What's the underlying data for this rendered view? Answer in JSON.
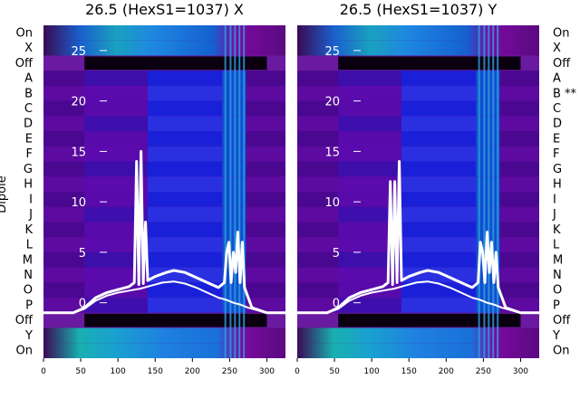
{
  "chart_data": [
    {
      "type": "heatmap",
      "title": "26.5 (HexS1=1037) X",
      "x_ticks": [
        0,
        50,
        100,
        150,
        200,
        250,
        300
      ],
      "xlim": [
        0,
        325
      ],
      "inner_y_ticks": [
        0,
        5,
        10,
        15,
        20,
        25
      ],
      "inner_ylim": [
        -5.5,
        27.5
      ],
      "ylabel": "Dipole",
      "row_labels": [
        "On",
        "X",
        "Off",
        "A",
        "B",
        "C",
        "D",
        "E",
        "F",
        "G",
        "H",
        "I",
        "J",
        "K",
        "L",
        "M",
        "N",
        "O",
        "P",
        "Off",
        "Y",
        "On"
      ],
      "traces": [
        {
          "x": [
            0,
            20,
            40,
            55,
            70,
            85,
            100,
            115,
            122,
            125,
            128,
            131,
            134,
            137,
            140,
            150,
            165,
            175,
            190,
            205,
            220,
            235,
            243,
            246,
            249,
            252,
            255,
            258,
            261,
            264,
            267,
            270,
            280,
            300,
            325
          ],
          "y": [
            -1,
            -1,
            -1,
            -0.5,
            0.5,
            1,
            1.3,
            1.6,
            2,
            14,
            1.8,
            15,
            1.9,
            8,
            2.2,
            2.6,
            3,
            3.2,
            3,
            2.5,
            2,
            1.5,
            2,
            5,
            6,
            2,
            5,
            3,
            7,
            2,
            6,
            1.5,
            -0.5,
            -1,
            -1
          ]
        },
        {
          "x": [
            0,
            40,
            55,
            70,
            85,
            100,
            115,
            130,
            145,
            160,
            175,
            190,
            205,
            220,
            235,
            245,
            255,
            265,
            275,
            300,
            325
          ],
          "y": [
            -1,
            -1,
            -0.6,
            0.2,
            0.7,
            1,
            1.2,
            1.4,
            1.7,
            2,
            2.1,
            1.9,
            1.5,
            1,
            0.5,
            0.3,
            0,
            -0.2,
            -0.5,
            -1,
            -1
          ]
        }
      ]
    },
    {
      "type": "heatmap",
      "title": "26.5 (HexS1=1037) Y",
      "x_ticks": [
        0,
        50,
        100,
        150,
        200,
        250,
        300
      ],
      "xlim": [
        0,
        325
      ],
      "inner_y_ticks": [
        0,
        5,
        10,
        15,
        20,
        25
      ],
      "inner_ylim": [
        -5.5,
        27.5
      ],
      "row_labels": [
        "On",
        "X",
        "Off",
        "A",
        "B **",
        "C",
        "D",
        "E",
        "F",
        "G",
        "H",
        "I",
        "J",
        "K",
        "L",
        "M",
        "N",
        "O",
        "P",
        "Off",
        "Y",
        "On"
      ],
      "traces": [
        {
          "x": [
            0,
            20,
            40,
            55,
            70,
            85,
            100,
            115,
            122,
            125,
            128,
            131,
            134,
            137,
            140,
            150,
            165,
            175,
            190,
            205,
            220,
            235,
            243,
            246,
            249,
            252,
            255,
            258,
            261,
            264,
            267,
            270,
            280,
            300,
            325
          ],
          "y": [
            -1,
            -1,
            -1,
            -0.5,
            0.5,
            1,
            1.3,
            1.6,
            2,
            12,
            1.8,
            12,
            2,
            14,
            2.2,
            2.6,
            3,
            3.2,
            3,
            2.5,
            2,
            1.5,
            2,
            6,
            5,
            2,
            7,
            3,
            6,
            2,
            5,
            1.5,
            -0.5,
            -1,
            -1
          ]
        },
        {
          "x": [
            0,
            40,
            55,
            70,
            85,
            100,
            115,
            130,
            145,
            160,
            175,
            190,
            205,
            220,
            235,
            245,
            255,
            265,
            275,
            300,
            325
          ],
          "y": [
            -1,
            -1,
            -0.6,
            0.2,
            0.7,
            1,
            1.2,
            1.4,
            1.7,
            2,
            2.1,
            1.9,
            1.5,
            1,
            0.5,
            0.3,
            0,
            -0.2,
            -0.5,
            -1,
            -1
          ]
        }
      ]
    }
  ]
}
